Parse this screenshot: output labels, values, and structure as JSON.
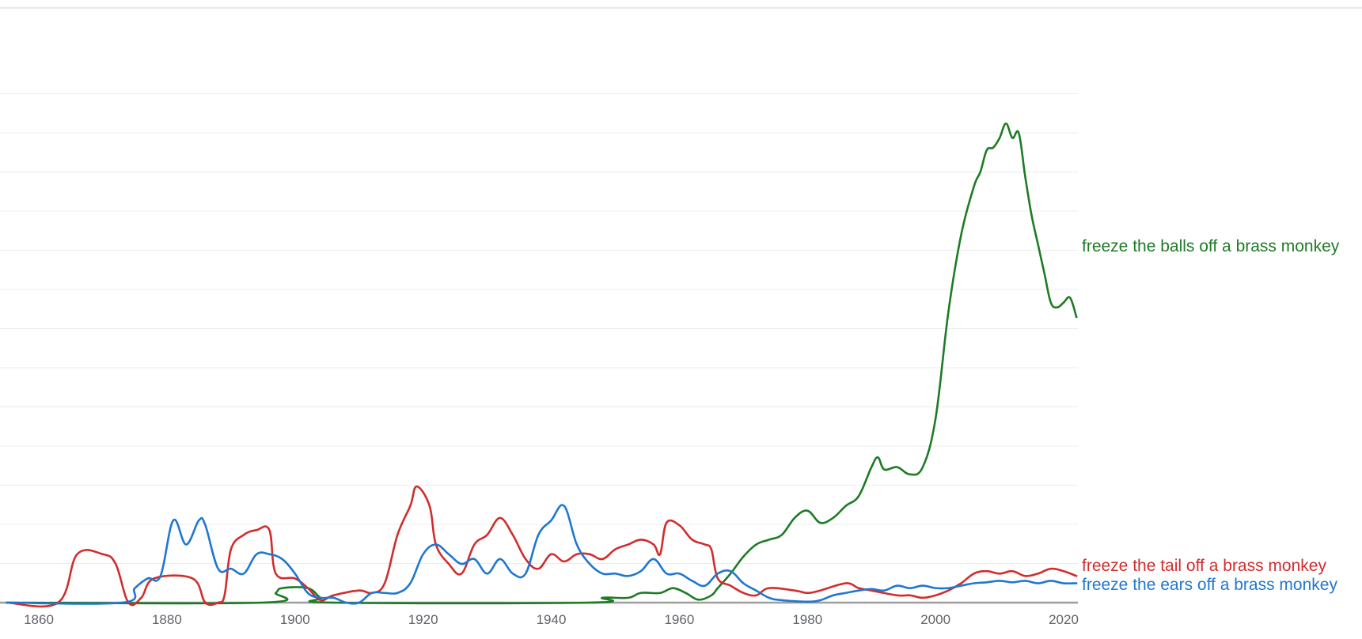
{
  "chart_data": {
    "type": "line",
    "xlim": [
      1855,
      2022
    ],
    "ylim": [
      0,
      100
    ],
    "grid": true,
    "x_ticks": [
      1860,
      1880,
      1900,
      1920,
      1940,
      1960,
      1980,
      2000,
      2020
    ],
    "series": [
      {
        "name": "freeze the balls off a brass monkey",
        "color": "#1e7b25",
        "points": [
          [
            1855,
            0
          ],
          [
            1895,
            0
          ],
          [
            1897,
            2
          ],
          [
            1898,
            3
          ],
          [
            1902,
            3
          ],
          [
            1904,
            1
          ],
          [
            1906,
            0
          ],
          [
            1946,
            0
          ],
          [
            1948,
            1
          ],
          [
            1952,
            1
          ],
          [
            1954,
            2
          ],
          [
            1957,
            2
          ],
          [
            1959,
            3
          ],
          [
            1961,
            2
          ],
          [
            1963,
            0.6
          ],
          [
            1965,
            1.5
          ],
          [
            1966,
            3
          ],
          [
            1968,
            6
          ],
          [
            1970,
            9.5
          ],
          [
            1972,
            12
          ],
          [
            1974,
            13
          ],
          [
            1976,
            14
          ],
          [
            1978,
            17.5
          ],
          [
            1980,
            19
          ],
          [
            1982,
            16.5
          ],
          [
            1984,
            17.5
          ],
          [
            1986,
            20
          ],
          [
            1988,
            22
          ],
          [
            1990,
            28
          ],
          [
            1991,
            30
          ],
          [
            1992,
            27.5
          ],
          [
            1994,
            28
          ],
          [
            1996,
            26.5
          ],
          [
            1998,
            28
          ],
          [
            2000,
            38
          ],
          [
            2002,
            60
          ],
          [
            2004,
            76
          ],
          [
            2006,
            86
          ],
          [
            2007,
            89
          ],
          [
            2008,
            93.5
          ],
          [
            2009,
            94
          ],
          [
            2010,
            96
          ],
          [
            2011,
            99
          ],
          [
            2012,
            96
          ],
          [
            2013,
            97
          ],
          [
            2014,
            88
          ],
          [
            2015,
            80
          ],
          [
            2016,
            74
          ],
          [
            2017,
            68
          ],
          [
            2018,
            62
          ],
          [
            2019,
            61
          ],
          [
            2020,
            62
          ],
          [
            2021,
            63
          ],
          [
            2022,
            59
          ]
        ]
      },
      {
        "name": "freeze the tail off a brass monkey",
        "color": "#d12d2d",
        "points": [
          [
            1855,
            0
          ],
          [
            1863,
            0
          ],
          [
            1866,
            10
          ],
          [
            1870,
            10
          ],
          [
            1872,
            8
          ],
          [
            1874,
            0
          ],
          [
            1876,
            1
          ],
          [
            1878,
            5
          ],
          [
            1884,
            5
          ],
          [
            1886,
            0
          ],
          [
            1888,
            0
          ],
          [
            1889,
            1.5
          ],
          [
            1890,
            11
          ],
          [
            1892,
            14
          ],
          [
            1894,
            15
          ],
          [
            1896,
            15
          ],
          [
            1897,
            6
          ],
          [
            1900,
            5
          ],
          [
            1902,
            3
          ],
          [
            1904,
            0.5
          ],
          [
            1906,
            1.5
          ],
          [
            1910,
            2.5
          ],
          [
            1912,
            2
          ],
          [
            1914,
            4
          ],
          [
            1916,
            14
          ],
          [
            1918,
            20
          ],
          [
            1919,
            24
          ],
          [
            1921,
            20
          ],
          [
            1922,
            12
          ],
          [
            1924,
            8
          ],
          [
            1926,
            6
          ],
          [
            1928,
            12
          ],
          [
            1930,
            14
          ],
          [
            1932,
            17.5
          ],
          [
            1934,
            14
          ],
          [
            1936,
            9
          ],
          [
            1938,
            7
          ],
          [
            1940,
            10
          ],
          [
            1942,
            8.5
          ],
          [
            1944,
            10
          ],
          [
            1946,
            10
          ],
          [
            1948,
            9
          ],
          [
            1950,
            11
          ],
          [
            1952,
            12
          ],
          [
            1954,
            13
          ],
          [
            1956,
            12
          ],
          [
            1957,
            10
          ],
          [
            1958,
            16.5
          ],
          [
            1960,
            16
          ],
          [
            1962,
            13
          ],
          [
            1964,
            12
          ],
          [
            1965,
            11
          ],
          [
            1966,
            5
          ],
          [
            1968,
            3.5
          ],
          [
            1970,
            2
          ],
          [
            1972,
            1.5
          ],
          [
            1974,
            3
          ],
          [
            1978,
            2.5
          ],
          [
            1980,
            2
          ],
          [
            1982,
            2.5
          ],
          [
            1986,
            4
          ],
          [
            1988,
            3
          ],
          [
            1990,
            2.5
          ],
          [
            1994,
            1.5
          ],
          [
            1996,
            1.5
          ],
          [
            1998,
            1
          ],
          [
            2000,
            1.5
          ],
          [
            2002,
            2.5
          ],
          [
            2004,
            4
          ],
          [
            2006,
            6
          ],
          [
            2008,
            6.5
          ],
          [
            2010,
            6
          ],
          [
            2012,
            6.5
          ],
          [
            2014,
            5.5
          ],
          [
            2016,
            6
          ],
          [
            2018,
            7
          ],
          [
            2020,
            6.5
          ],
          [
            2022,
            5.5
          ]
        ]
      },
      {
        "name": "freeze the ears off a brass monkey",
        "color": "#1f77d1",
        "points": [
          [
            1855,
            0
          ],
          [
            1873,
            0
          ],
          [
            1875,
            3
          ],
          [
            1877,
            5
          ],
          [
            1879,
            5.5
          ],
          [
            1881,
            17
          ],
          [
            1883,
            12
          ],
          [
            1885,
            17
          ],
          [
            1886,
            16
          ],
          [
            1888,
            7
          ],
          [
            1890,
            7
          ],
          [
            1892,
            6
          ],
          [
            1894,
            10
          ],
          [
            1896,
            10
          ],
          [
            1898,
            9
          ],
          [
            1900,
            6
          ],
          [
            1902,
            2
          ],
          [
            1904,
            1
          ],
          [
            1906,
            1
          ],
          [
            1908,
            0
          ],
          [
            1910,
            0
          ],
          [
            1912,
            2
          ],
          [
            1914,
            2
          ],
          [
            1916,
            2
          ],
          [
            1918,
            4
          ],
          [
            1920,
            10
          ],
          [
            1922,
            12
          ],
          [
            1924,
            10
          ],
          [
            1926,
            8
          ],
          [
            1928,
            9
          ],
          [
            1930,
            6
          ],
          [
            1932,
            9
          ],
          [
            1934,
            6
          ],
          [
            1936,
            6
          ],
          [
            1938,
            14
          ],
          [
            1940,
            17
          ],
          [
            1942,
            20
          ],
          [
            1944,
            12
          ],
          [
            1946,
            8
          ],
          [
            1948,
            6
          ],
          [
            1950,
            6
          ],
          [
            1952,
            5.5
          ],
          [
            1954,
            6.5
          ],
          [
            1956,
            9
          ],
          [
            1958,
            6
          ],
          [
            1960,
            6
          ],
          [
            1962,
            4.5
          ],
          [
            1964,
            3.5
          ],
          [
            1966,
            6
          ],
          [
            1968,
            6.5
          ],
          [
            1970,
            4
          ],
          [
            1972,
            2.5
          ],
          [
            1974,
            1
          ],
          [
            1976,
            0.5
          ],
          [
            1980,
            0.2
          ],
          [
            1982,
            0.5
          ],
          [
            1984,
            1.5
          ],
          [
            1986,
            2
          ],
          [
            1988,
            2.5
          ],
          [
            1990,
            2.8
          ],
          [
            1992,
            2.5
          ],
          [
            1994,
            3.5
          ],
          [
            1996,
            3
          ],
          [
            1998,
            3.5
          ],
          [
            2000,
            3
          ],
          [
            2002,
            3
          ],
          [
            2004,
            3.5
          ],
          [
            2006,
            4
          ],
          [
            2008,
            4.2
          ],
          [
            2010,
            4.5
          ],
          [
            2012,
            4.2
          ],
          [
            2014,
            4.5
          ],
          [
            2016,
            4
          ],
          [
            2018,
            4.5
          ],
          [
            2020,
            4
          ],
          [
            2022,
            4
          ]
        ]
      }
    ]
  }
}
